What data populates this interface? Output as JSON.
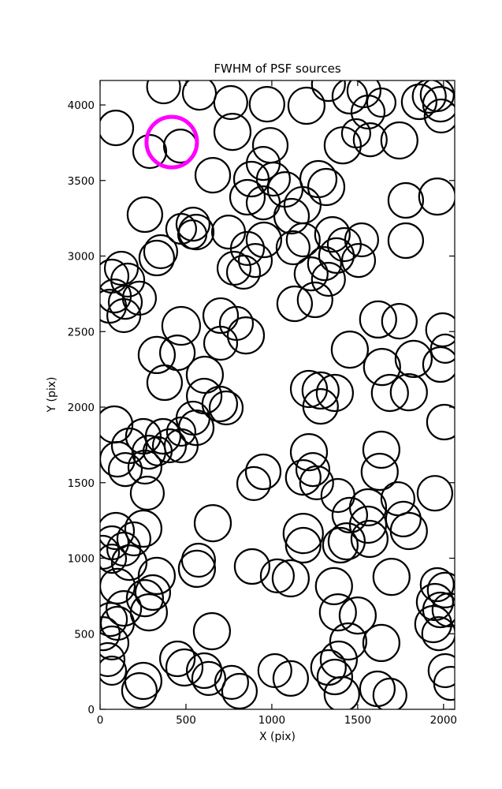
{
  "figure": {
    "background_color": "#ffffff",
    "axes_color": "#000000"
  },
  "chart_data": {
    "type": "scatter",
    "title": "FWHM of PSF sources",
    "xlabel": "X (pix)",
    "ylabel": "Y (pix)",
    "xlim": [
      0,
      2065
    ],
    "ylim": [
      0,
      4162
    ],
    "x_ticks": [
      0,
      500,
      1000,
      1500,
      2000
    ],
    "y_ticks": [
      0,
      500,
      1000,
      1500,
      2000,
      2500,
      3000,
      3500,
      4000
    ],
    "grid": false,
    "legend": null,
    "marker_style": {
      "shape": "open-circle",
      "stroke": "#000000",
      "stroke_width": 2.2,
      "fill": "none",
      "default_radius_px": 21
    },
    "highlight_marker": {
      "x": 417,
      "y": 3754,
      "radius_px": 32,
      "stroke": "#FF00FF",
      "stroke_width": 5,
      "meaning": "highlighted PSF source"
    },
    "points": [
      [
        370,
        4120
      ],
      [
        578,
        4078
      ],
      [
        761,
        4016
      ],
      [
        771,
        3822,
        23
      ],
      [
        972,
        4005,
        22
      ],
      [
        991,
        3733,
        22
      ],
      [
        92,
        3848,
        22
      ],
      [
        468,
        3728
      ],
      [
        289,
        3692
      ],
      [
        656,
        3535,
        22
      ],
      [
        881,
        3509,
        22
      ],
      [
        950,
        3613
      ],
      [
        1009,
        3509
      ],
      [
        858,
        3389,
        22
      ],
      [
        950,
        3352
      ],
      [
        261,
        3274,
        22
      ],
      [
        541,
        3211
      ],
      [
        560,
        3159,
        22
      ],
      [
        537,
        3143,
        18
      ],
      [
        472,
        3180,
        19
      ],
      [
        748,
        3159
      ],
      [
        858,
        3050
      ],
      [
        954,
        3107,
        22
      ],
      [
        330,
        2987,
        22
      ],
      [
        353,
        3029
      ],
      [
        124,
        2919
      ],
      [
        69,
        2867
      ],
      [
        161,
        2841
      ],
      [
        780,
        2919
      ],
      [
        835,
        2893
      ],
      [
        904,
        2971
      ],
      [
        1202,
        3995,
        23
      ],
      [
        1330,
        4136
      ],
      [
        1454,
        4058,
        22
      ],
      [
        1537,
        4094
      ],
      [
        1560,
        3953
      ],
      [
        1638,
        4016,
        18
      ],
      [
        1858,
        4021,
        22
      ],
      [
        1917,
        4058
      ],
      [
        1982,
        4005,
        22
      ],
      [
        1963,
        4068
      ],
      [
        1986,
        3927
      ],
      [
        1413,
        3733,
        23
      ],
      [
        1743,
        3765,
        23
      ],
      [
        1491,
        3812,
        18
      ],
      [
        1573,
        3770
      ],
      [
        1271,
        3509,
        23
      ],
      [
        1317,
        3457,
        23
      ],
      [
        1078,
        3441,
        22
      ],
      [
        1179,
        3337,
        23
      ],
      [
        1115,
        3264,
        22
      ],
      [
        1183,
        3107
      ],
      [
        1124,
        3055
      ],
      [
        1353,
        3143,
        22
      ],
      [
        1422,
        3076
      ],
      [
        1523,
        3107
      ],
      [
        1376,
        3003,
        22
      ],
      [
        1307,
        2950
      ],
      [
        1505,
        2971
      ],
      [
        1229,
        2882
      ],
      [
        1330,
        2846
      ],
      [
        1780,
        3368,
        22
      ],
      [
        1963,
        3394,
        23
      ],
      [
        1780,
        3102,
        22
      ],
      [
        83,
        2736
      ],
      [
        147,
        2694
      ],
      [
        55,
        2668
      ],
      [
        229,
        2721
      ],
      [
        138,
        2606
      ],
      [
        472,
        2538,
        24
      ],
      [
        330,
        2345,
        23
      ],
      [
        450,
        2360,
        22
      ],
      [
        702,
        2606,
        22
      ],
      [
        794,
        2554
      ],
      [
        849,
        2475,
        23
      ],
      [
        702,
        2423
      ],
      [
        376,
        2162,
        22
      ],
      [
        610,
        2214,
        23
      ],
      [
        606,
        2073,
        22
      ],
      [
        697,
        2021,
        22
      ],
      [
        734,
        1995
      ],
      [
        83,
        1885,
        23
      ],
      [
        252,
        1807,
        22
      ],
      [
        541,
        1927
      ],
      [
        472,
        1838,
        18
      ],
      [
        560,
        1864,
        22
      ],
      [
        367,
        1807,
        22
      ],
      [
        404,
        1744
      ],
      [
        170,
        1744,
        22
      ],
      [
        101,
        1655,
        22
      ],
      [
        284,
        1702
      ],
      [
        335,
        1708,
        18
      ],
      [
        472,
        1744
      ],
      [
        261,
        1603
      ],
      [
        147,
        1587
      ],
      [
        275,
        1431
      ],
      [
        950,
        1572,
        22
      ],
      [
        895,
        1494
      ],
      [
        1133,
        2684,
        22
      ],
      [
        1252,
        2710,
        22
      ],
      [
        1619,
        2580,
        23
      ],
      [
        1743,
        2569,
        22
      ],
      [
        1454,
        2381,
        23
      ],
      [
        1642,
        2266,
        23
      ],
      [
        1826,
        2319,
        23
      ],
      [
        1995,
        2512
      ],
      [
        2009,
        2387,
        18
      ],
      [
        1982,
        2282,
        22
      ],
      [
        1688,
        2094,
        23
      ],
      [
        1798,
        2099,
        23
      ],
      [
        1284,
        2110,
        23
      ],
      [
        1367,
        2094,
        23
      ],
      [
        1284,
        2005,
        22
      ],
      [
        1216,
        2120,
        23
      ],
      [
        2005,
        1901,
        22
      ],
      [
        1216,
        1702,
        23
      ],
      [
        1239,
        1587
      ],
      [
        1183,
        1535,
        22
      ],
      [
        1261,
        1499
      ],
      [
        1638,
        1718,
        23
      ],
      [
        1628,
        1572,
        23
      ],
      [
        1950,
        1430,
        22
      ],
      [
        1385,
        1415
      ],
      [
        1734,
        1394
      ],
      [
        92,
        1180,
        23
      ],
      [
        252,
        1196,
        23
      ],
      [
        69,
        1102
      ],
      [
        197,
        1128
      ],
      [
        138,
        1060
      ],
      [
        69,
        997,
        18
      ],
      [
        170,
        971,
        22
      ],
      [
        656,
        1232,
        23
      ],
      [
        564,
        930,
        23
      ],
      [
        573,
        987
      ],
      [
        885,
        945,
        22
      ],
      [
        1032,
        883
      ],
      [
        330,
        883,
        23
      ],
      [
        307,
        773,
        22
      ],
      [
        261,
        736,
        23
      ],
      [
        101,
        815,
        22
      ],
      [
        138,
        668,
        22
      ],
      [
        60,
        595
      ],
      [
        101,
        569
      ],
      [
        284,
        642,
        23
      ],
      [
        651,
        517,
        23
      ],
      [
        69,
        439
      ],
      [
        46,
        329
      ],
      [
        69,
        256,
        18
      ],
      [
        252,
        188,
        23
      ],
      [
        229,
        125,
        22
      ],
      [
        450,
        334,
        22
      ],
      [
        491,
        277,
        23
      ],
      [
        606,
        256,
        22
      ],
      [
        633,
        204
      ],
      [
        766,
        178
      ],
      [
        812,
        120,
        22
      ],
      [
        1018,
        256
      ],
      [
        14,
        1039
      ],
      [
        18,
        501
      ],
      [
        1183,
        1164,
        25
      ],
      [
        1183,
        1086,
        22
      ],
      [
        1560,
        1337,
        23
      ],
      [
        1454,
        1285,
        22
      ],
      [
        1560,
        1222,
        23
      ],
      [
        1569,
        1128,
        23
      ],
      [
        1436,
        1112,
        23
      ],
      [
        1399,
        1086,
        22
      ],
      [
        1766,
        1259,
        22
      ],
      [
        1798,
        1180,
        23
      ],
      [
        1697,
        877,
        23
      ],
      [
        1110,
        867,
        23
      ],
      [
        1362,
        815,
        23
      ],
      [
        1385,
        642,
        23
      ],
      [
        1500,
        621,
        23
      ],
      [
        1445,
        449,
        23
      ],
      [
        1638,
        439,
        23
      ],
      [
        1390,
        329,
        23
      ],
      [
        1330,
        277,
        22
      ],
      [
        1367,
        214,
        22
      ],
      [
        1110,
        204,
        22
      ],
      [
        1408,
        99,
        22
      ],
      [
        1615,
        136,
        22
      ],
      [
        1688,
        94
      ],
      [
        1963,
        825
      ],
      [
        2009,
        789,
        22
      ],
      [
        1950,
        710,
        23
      ],
      [
        1982,
        658,
        22
      ],
      [
        1940,
        564,
        23
      ],
      [
        1972,
        501
      ],
      [
        2032,
        658
      ],
      [
        2009,
        256
      ],
      [
        2041,
        172
      ]
    ]
  }
}
